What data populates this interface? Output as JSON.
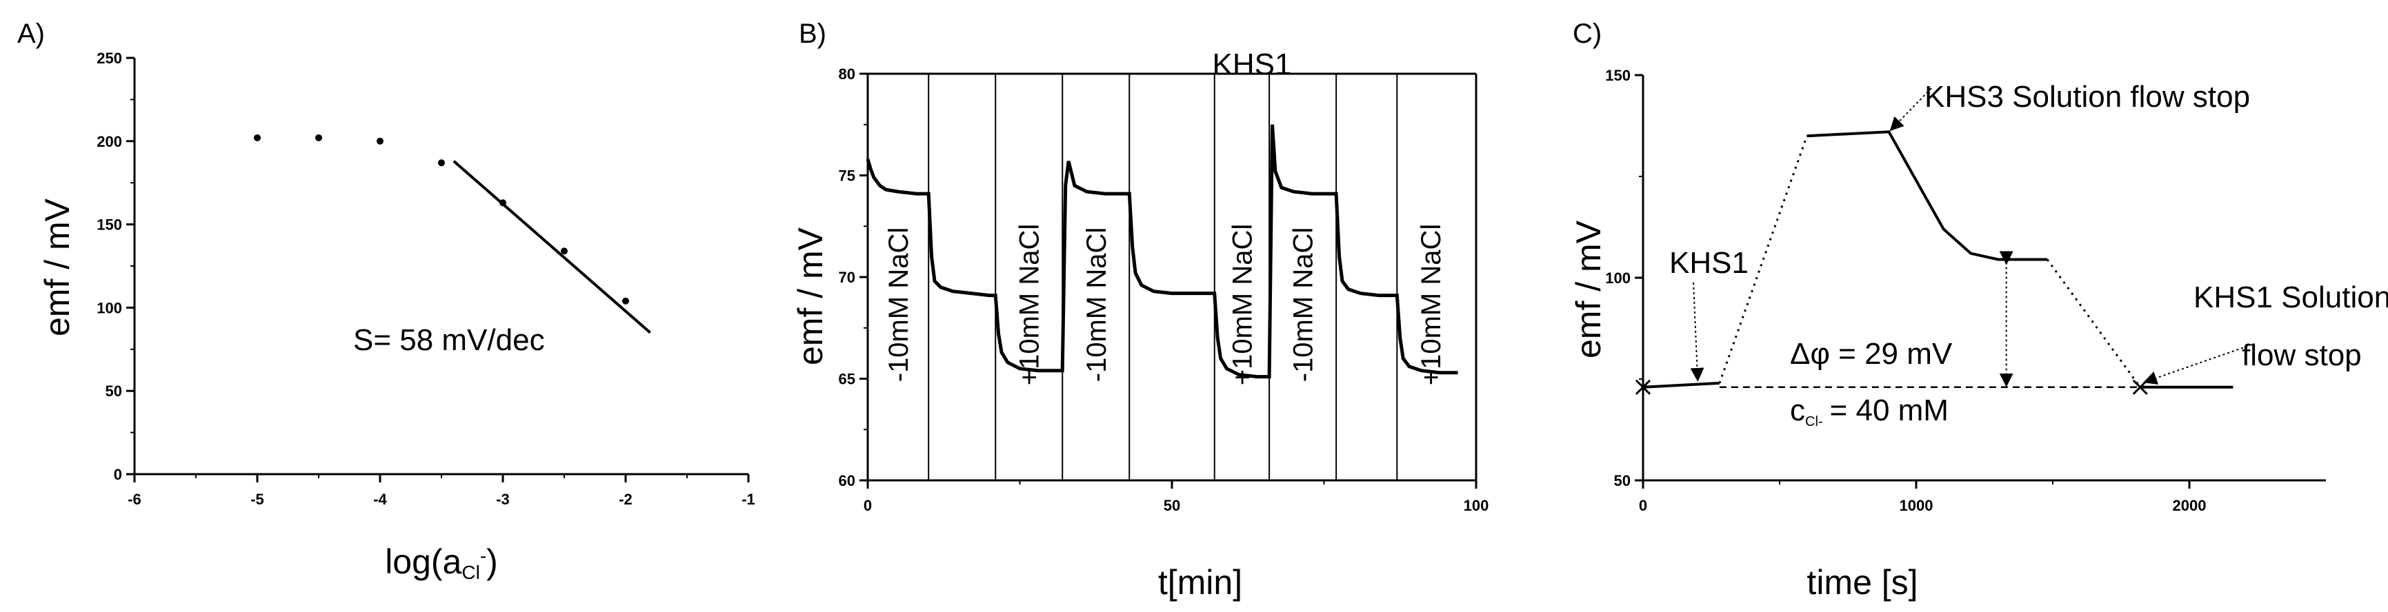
{
  "chart_data": [
    {
      "type": "scatter",
      "panel_label": "A)",
      "xlabel_main": "log(a",
      "xlabel_sub": "Cl",
      "xlabel_sup": "-",
      "xlabel_close": ")",
      "ylabel": "emf / mV",
      "xlim": [
        -6,
        -1
      ],
      "ylim": [
        0,
        250
      ],
      "xticks": [
        -6,
        -5,
        -4,
        -3,
        -2,
        -1
      ],
      "yticks": [
        0,
        50,
        100,
        150,
        200,
        250
      ],
      "series": [
        {
          "x": [
            -5,
            -4.5,
            -4,
            -3.5,
            -3,
            -2.5,
            -2
          ],
          "y": [
            202,
            202,
            200,
            187,
            163,
            134,
            104
          ]
        }
      ],
      "fit_line": {
        "x": [
          -3.4,
          -1.8
        ],
        "y": [
          188,
          85
        ]
      },
      "annotations": [
        {
          "text": "S= 58 mV/dec",
          "x": -4.5,
          "y": 90
        }
      ]
    },
    {
      "type": "line",
      "panel_label": "B)",
      "title": "KHS1",
      "xlabel": "t[min]",
      "ylabel": "emf / mV",
      "xlim": [
        0,
        100
      ],
      "ylim": [
        60,
        80
      ],
      "xticks": [
        0,
        50,
        100
      ],
      "yticks": [
        60,
        65,
        70,
        75,
        80
      ],
      "markers": [
        10,
        21,
        32,
        43,
        57,
        66,
        77,
        87
      ],
      "segment_labels": [
        {
          "text": "-10mM NaCl",
          "x": 5
        },
        {
          "text": "+10mM NaCl",
          "x": 26.5
        },
        {
          "text": "-10mM NaCl",
          "x": 37.5
        },
        {
          "text": "+10mM NaCl",
          "x": 61.5
        },
        {
          "text": "-10mM NaCl",
          "x": 71.5
        },
        {
          "text": "+10mM NaCl",
          "x": 92.5
        }
      ],
      "series": [
        {
          "x": [
            0,
            0.5,
            1,
            2,
            3,
            5,
            8,
            10,
            10.5,
            11,
            12,
            14,
            17,
            20,
            21,
            21.5,
            22,
            23,
            25,
            28,
            31,
            32,
            32.5,
            33,
            34,
            36,
            39,
            42,
            43,
            43.5,
            44,
            45,
            47,
            50,
            53,
            56,
            57,
            57.5,
            58,
            59,
            61,
            64,
            65,
            66,
            66.5,
            67,
            68,
            70,
            73,
            76,
            77,
            77.5,
            78,
            79,
            81,
            84,
            86,
            87,
            87.5,
            88,
            89,
            91,
            94,
            97
          ],
          "y": [
            75.8,
            75.3,
            74.9,
            74.5,
            74.3,
            74.2,
            74.1,
            74.1,
            71.0,
            69.8,
            69.5,
            69.3,
            69.2,
            69.1,
            69.1,
            67.2,
            66.3,
            65.8,
            65.5,
            65.4,
            65.4,
            65.4,
            74.5,
            75.7,
            74.5,
            74.2,
            74.1,
            74.1,
            74.1,
            71.5,
            70.2,
            69.6,
            69.3,
            69.2,
            69.2,
            69.2,
            69.2,
            67.0,
            66.0,
            65.5,
            65.2,
            65.1,
            65.1,
            65.1,
            77.5,
            75.2,
            74.4,
            74.2,
            74.1,
            74.1,
            74.1,
            71.0,
            69.8,
            69.4,
            69.2,
            69.1,
            69.1,
            69.1,
            67.0,
            66.0,
            65.6,
            65.4,
            65.3,
            65.3
          ]
        }
      ]
    },
    {
      "type": "line",
      "panel_label": "C)",
      "xlabel": "time [s]",
      "ylabel": "emf / mV",
      "xlim": [
        0,
        2500
      ],
      "ylim": [
        50,
        150
      ],
      "xticks": [
        0,
        1000,
        2000
      ],
      "yticks": [
        50,
        100,
        150
      ],
      "series": [
        {
          "name": "solid",
          "x": [
            0,
            280,
            null,
            600,
            900,
            1000,
            1100,
            1200,
            1300,
            1480,
            null,
            1820,
            2160
          ],
          "y": [
            73,
            74,
            null,
            135,
            136,
            124,
            112,
            106,
            104.5,
            104.5,
            null,
            73,
            73
          ]
        },
        {
          "name": "dotted",
          "x": [
            280,
            600,
            null,
            1480,
            1820
          ],
          "y": [
            74,
            135,
            null,
            104.5,
            73
          ]
        },
        {
          "name": "baseline",
          "x": [
            280,
            1820
          ],
          "y": [
            73,
            73
          ]
        }
      ],
      "annotations": [
        {
          "text": "KHS3 Solution flow stop"
        },
        {
          "text": "KHS1"
        },
        {
          "text": "KHS1 Solution"
        },
        {
          "text": "flow stop"
        },
        {
          "text": "Δφ = 29 mV"
        },
        {
          "text": "c"
        },
        {
          "text": "Cl-"
        },
        {
          "text": "= 40 mM"
        }
      ]
    }
  ]
}
